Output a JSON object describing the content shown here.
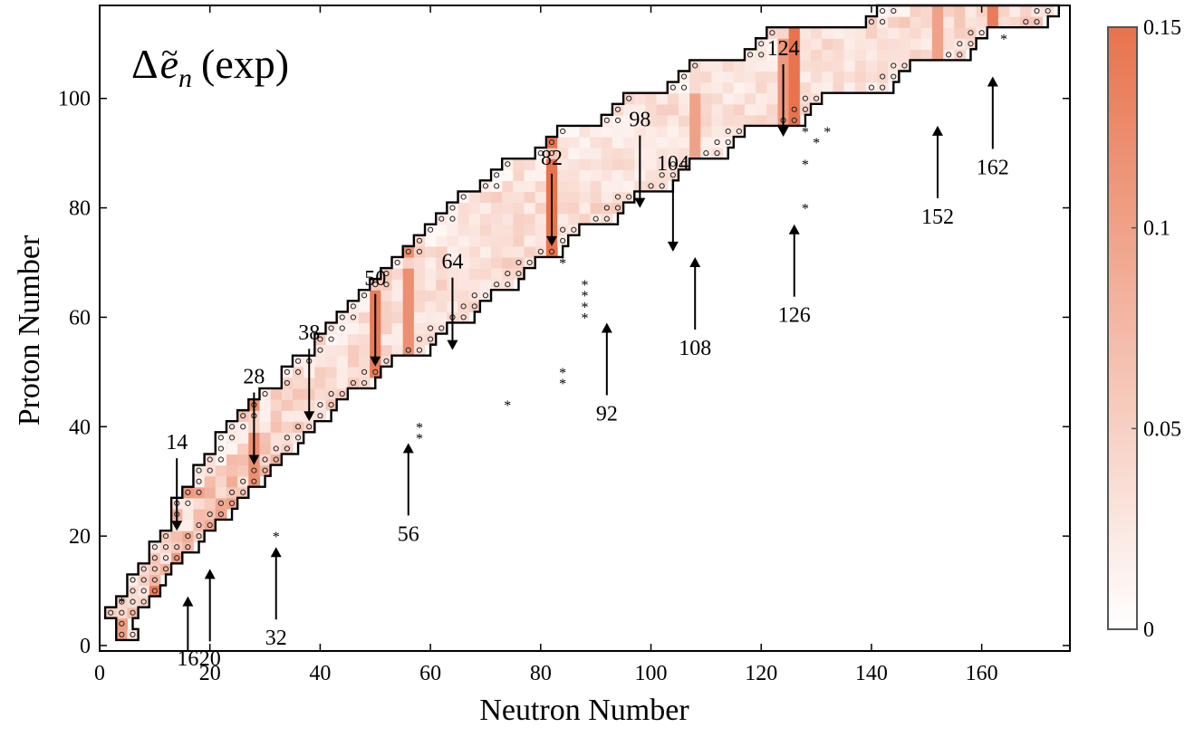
{
  "chart_data": {
    "type": "heatmap",
    "title": "Δẽ_n (exp)",
    "title_parts": {
      "delta": "Δ",
      "symbol": "e",
      "tilde": "~",
      "subscript": "n",
      "suffix": "(exp)"
    },
    "xlabel": "Neutron Number",
    "ylabel": "Proton Number",
    "xlim": [
      0,
      176
    ],
    "ylim": [
      -1,
      117
    ],
    "xticks": [
      "0",
      "20",
      "40",
      "60",
      "80",
      "100",
      "120",
      "140",
      "160"
    ],
    "yticks": [
      "0",
      "20",
      "40",
      "60",
      "80",
      "100"
    ],
    "colorbar": {
      "min": 0,
      "max": 0.15,
      "ticks": [
        "0",
        "0.05",
        "0.1",
        "0.15"
      ],
      "color_low": "#ffffff",
      "color_high": "#e8734d"
    },
    "nuclide_chart_bands": [
      {
        "z": [
          1,
          2
        ],
        "n": [
          1,
          6
        ],
        "value": 0.12
      },
      {
        "z": [
          3,
          5
        ],
        "n": [
          2,
          7
        ],
        "value": 0.13
      },
      {
        "z": [
          6,
          10
        ],
        "n": [
          3,
          10
        ],
        "value": 0.11
      },
      {
        "z": [
          11,
          16
        ],
        "n": [
          6,
          14
        ],
        "value": 0.1
      },
      {
        "z": [
          17,
          22
        ],
        "n": [
          10,
          20
        ],
        "value": 0.09
      },
      {
        "z": [
          23,
          28
        ],
        "n": [
          13,
          26
        ],
        "value": 0.085
      },
      {
        "z": [
          29,
          34
        ],
        "n": [
          17,
          32
        ],
        "value": 0.07
      },
      {
        "z": [
          35,
          40
        ],
        "n": [
          21,
          38
        ],
        "value": 0.06
      },
      {
        "z": [
          41,
          46
        ],
        "n": [
          26,
          44
        ],
        "value": 0.05
      },
      {
        "z": [
          47,
          52
        ],
        "n": [
          33,
          52
        ],
        "value": 0.045
      },
      {
        "z": [
          53,
          58
        ],
        "n": [
          39,
          62
        ],
        "value": 0.045
      },
      {
        "z": [
          59,
          64
        ],
        "n": [
          44,
          70
        ],
        "value": 0.04
      },
      {
        "z": [
          65,
          70
        ],
        "n": [
          50,
          78
        ],
        "value": 0.045
      },
      {
        "z": [
          71,
          76
        ],
        "n": [
          56,
          86
        ],
        "value": 0.04
      },
      {
        "z": [
          77,
          82
        ],
        "n": [
          62,
          96
        ],
        "value": 0.045
      },
      {
        "z": [
          83,
          88
        ],
        "n": [
          70,
          106
        ],
        "value": 0.035
      },
      {
        "z": [
          89,
          94
        ],
        "n": [
          80,
          116
        ],
        "value": 0.03
      },
      {
        "z": [
          95,
          100
        ],
        "n": [
          92,
          130
        ],
        "value": 0.04
      },
      {
        "z": [
          101,
          106
        ],
        "n": [
          104,
          146
        ],
        "value": 0.035
      },
      {
        "z": [
          107,
          112
        ],
        "n": [
          118,
          160
        ],
        "value": 0.04
      },
      {
        "z": [
          113,
          117
        ],
        "n": [
          140,
          174
        ],
        "value": 0.05
      }
    ],
    "magic_column_values": {
      "28": 0.12,
      "50": 0.14,
      "82": 0.15,
      "126": 0.15,
      "162": 0.14,
      "56": 0.12,
      "108": 0.1,
      "152": 0.1,
      "124": 0.11
    },
    "star_markers": [
      {
        "n": 4,
        "z": 8
      },
      {
        "n": 32,
        "z": 20
      },
      {
        "n": 58,
        "z": 40
      },
      {
        "n": 58,
        "z": 38
      },
      {
        "n": 74,
        "z": 44
      },
      {
        "n": 84,
        "z": 70
      },
      {
        "n": 84,
        "z": 50
      },
      {
        "n": 84,
        "z": 48
      },
      {
        "n": 88,
        "z": 62
      },
      {
        "n": 88,
        "z": 60
      },
      {
        "n": 88,
        "z": 64
      },
      {
        "n": 88,
        "z": 66
      },
      {
        "n": 128,
        "z": 94
      },
      {
        "n": 130,
        "z": 92
      },
      {
        "n": 132,
        "z": 94
      },
      {
        "n": 128,
        "z": 88
      },
      {
        "n": 128,
        "z": 80
      },
      {
        "n": 164,
        "z": 111
      }
    ],
    "annotations": [
      {
        "label": "14",
        "n": 14,
        "z": 21,
        "direction": "down"
      },
      {
        "label": "16",
        "n": 16,
        "z": 9,
        "direction": "up"
      },
      {
        "label": "20",
        "n": 20,
        "z": 14,
        "direction": "up"
      },
      {
        "label": "28",
        "n": 28,
        "z": 33,
        "direction": "down"
      },
      {
        "label": "32",
        "n": 32,
        "z": 18,
        "direction": "up"
      },
      {
        "label": "38",
        "n": 38,
        "z": 41,
        "direction": "down"
      },
      {
        "label": "50",
        "n": 50,
        "z": 51,
        "direction": "down"
      },
      {
        "label": "56",
        "n": 56,
        "z": 37,
        "direction": "up"
      },
      {
        "label": "64",
        "n": 64,
        "z": 54,
        "direction": "down"
      },
      {
        "label": "82",
        "n": 82,
        "z": 73,
        "direction": "down"
      },
      {
        "label": "92",
        "n": 92,
        "z": 59,
        "direction": "up"
      },
      {
        "label": "98",
        "n": 98,
        "z": 80,
        "direction": "down"
      },
      {
        "label": "104",
        "n": 104,
        "z": 72,
        "direction": "down"
      },
      {
        "label": "108",
        "n": 108,
        "z": 71,
        "direction": "up"
      },
      {
        "label": "124",
        "n": 124,
        "z": 93,
        "direction": "down"
      },
      {
        "label": "126",
        "n": 126,
        "z": 77,
        "direction": "up"
      },
      {
        "label": "152",
        "n": 152,
        "z": 95,
        "direction": "up"
      },
      {
        "label": "162",
        "n": 162,
        "z": 104,
        "direction": "up"
      }
    ]
  }
}
